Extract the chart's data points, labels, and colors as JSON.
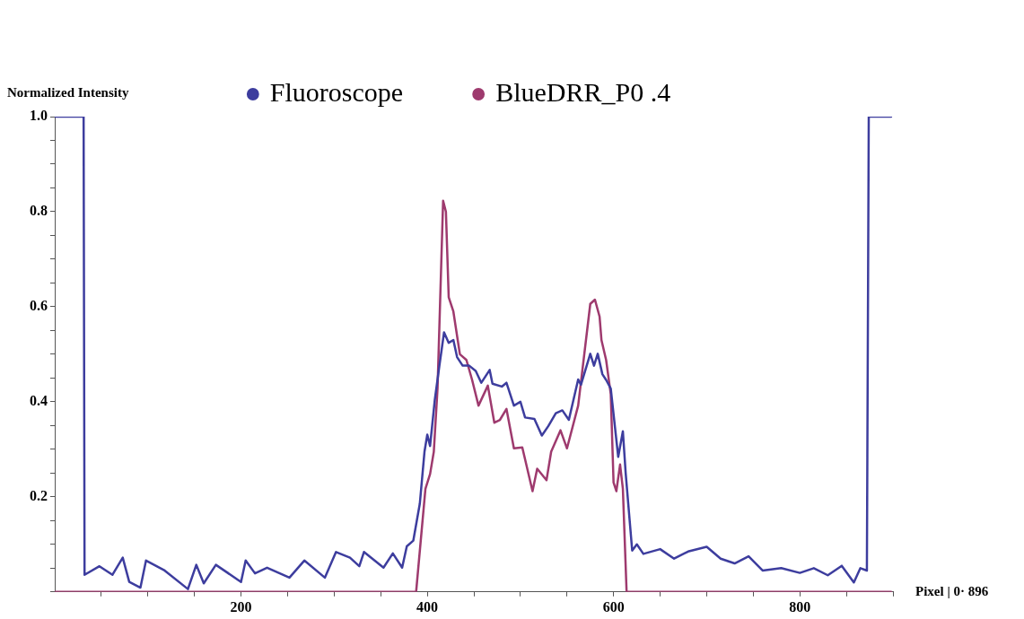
{
  "chart_data": {
    "type": "line",
    "ylabel": "Normalized Intensity",
    "xlabel": "Pixel | 0· 896",
    "legend": "top",
    "grid": false,
    "marker": "none",
    "line_style": "solid",
    "xlim": [
      0,
      900
    ],
    "ylim": [
      0,
      1.0
    ],
    "xticks": [
      {
        "value": 50,
        "label": null
      },
      {
        "value": 100,
        "label": null
      },
      {
        "value": 150,
        "label": null
      },
      200,
      {
        "value": 250,
        "label": null
      },
      {
        "value": 300,
        "label": null
      },
      {
        "value": 350,
        "label": null
      },
      400,
      {
        "value": 450,
        "label": null
      },
      {
        "value": 500,
        "label": null
      },
      {
        "value": 550,
        "label": null
      },
      600,
      {
        "value": 650,
        "label": null
      },
      {
        "value": 700,
        "label": null
      },
      {
        "value": 750,
        "label": null
      },
      800,
      {
        "value": 850,
        "label": null
      },
      {
        "value": 900,
        "label": null
      }
    ],
    "yticks": [
      {
        "value": 0,
        "label": null
      },
      {
        "value": 0.05,
        "label": null
      },
      {
        "value": 0.1,
        "label": null
      },
      {
        "value": 0.15,
        "label": null
      },
      0.2,
      {
        "value": 0.25,
        "label": null
      },
      {
        "value": 0.3,
        "label": null
      },
      {
        "value": 0.35,
        "label": null
      },
      0.4,
      {
        "value": 0.45,
        "label": null
      },
      {
        "value": 0.5,
        "label": null
      },
      {
        "value": 0.55,
        "label": null
      },
      0.6,
      {
        "value": 0.65,
        "label": null
      },
      {
        "value": 0.7,
        "label": null
      },
      {
        "value": 0.75,
        "label": null
      },
      0.8,
      {
        "value": 0.85,
        "label": null
      },
      {
        "value": 0.9,
        "label": null
      },
      {
        "value": 0.95,
        "label": null
      },
      {
        "value": 1.0,
        "label": "1.0"
      }
    ],
    "series": [
      {
        "name": "Fluoroscope",
        "color": "#3d3d9e",
        "x": [
          0,
          31,
          32,
          48,
          62,
          73,
          80,
          92,
          98,
          118,
          143,
          152,
          160,
          173,
          200,
          205,
          215,
          228,
          252,
          268,
          290,
          302,
          317,
          327,
          332,
          353,
          363,
          373,
          378,
          385,
          392,
          397,
          400,
          403,
          408,
          413,
          418,
          423,
          428,
          432,
          438,
          445,
          452,
          458,
          467,
          470,
          480,
          485,
          493,
          500,
          505,
          515,
          523,
          530,
          538,
          545,
          552,
          562,
          565,
          575,
          579,
          583,
          588,
          592,
          597,
          605,
          610,
          613,
          620,
          625,
          632,
          650,
          665,
          680,
          700,
          715,
          730,
          745,
          760,
          780,
          800,
          815,
          830,
          845,
          858,
          865,
          872,
          874,
          898
        ],
        "values": [
          1.0,
          1.0,
          0.036,
          0.054,
          0.036,
          0.072,
          0.021,
          0.009,
          0.066,
          0.045,
          0.006,
          0.057,
          0.018,
          0.057,
          0.021,
          0.066,
          0.039,
          0.051,
          0.03,
          0.066,
          0.03,
          0.084,
          0.072,
          0.054,
          0.084,
          0.051,
          0.081,
          0.051,
          0.096,
          0.108,
          0.186,
          0.295,
          0.331,
          0.307,
          0.403,
          0.476,
          0.546,
          0.524,
          0.53,
          0.494,
          0.476,
          0.476,
          0.465,
          0.44,
          0.467,
          0.438,
          0.432,
          0.44,
          0.392,
          0.4,
          0.367,
          0.364,
          0.329,
          0.349,
          0.376,
          0.382,
          0.362,
          0.447,
          0.436,
          0.501,
          0.476,
          0.501,
          0.458,
          0.446,
          0.428,
          0.284,
          0.338,
          0.25,
          0.087,
          0.1,
          0.08,
          0.09,
          0.07,
          0.085,
          0.095,
          0.07,
          0.06,
          0.075,
          0.045,
          0.05,
          0.04,
          0.05,
          0.035,
          0.055,
          0.02,
          0.05,
          0.045,
          1.0,
          1.0
        ]
      },
      {
        "name": "BlueDRR_P0 .4",
        "color": "#9e3a6e",
        "x": [
          0,
          388,
          398,
          403,
          407,
          411,
          417,
          420,
          423,
          428,
          435,
          442,
          448,
          455,
          465,
          472,
          478,
          485,
          493,
          502,
          513,
          518,
          528,
          533,
          543,
          550,
          562,
          575,
          580,
          585,
          587,
          592,
          597,
          600,
          603,
          607,
          610,
          614,
          898
        ],
        "values": [
          0,
          0,
          0.217,
          0.248,
          0.295,
          0.428,
          0.823,
          0.8,
          0.62,
          0.59,
          0.5,
          0.488,
          0.447,
          0.392,
          0.434,
          0.356,
          0.362,
          0.385,
          0.302,
          0.304,
          0.212,
          0.259,
          0.235,
          0.295,
          0.34,
          0.302,
          0.392,
          0.606,
          0.615,
          0.579,
          0.53,
          0.488,
          0.416,
          0.23,
          0.212,
          0.268,
          0.217,
          0,
          0
        ]
      }
    ]
  }
}
